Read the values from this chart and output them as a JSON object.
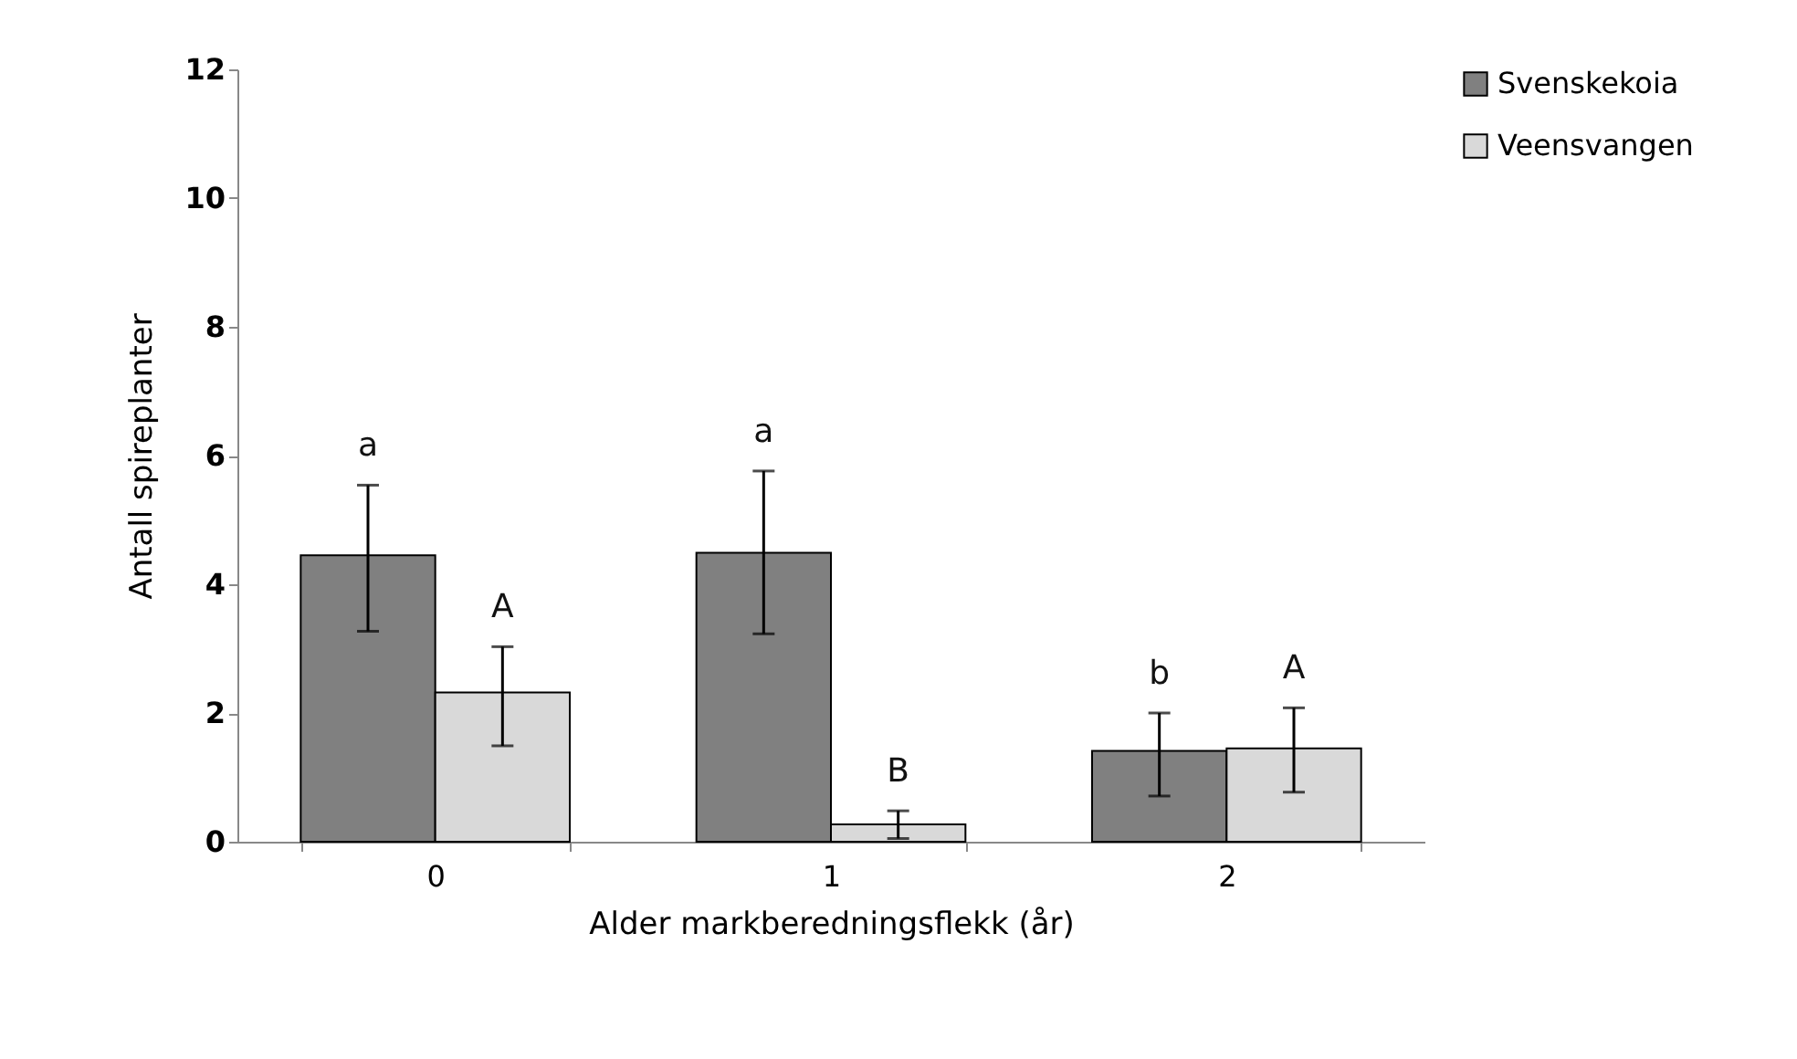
{
  "chart_data": {
    "type": "bar",
    "xlabel": "Alder markberedningsflekk (år)",
    "ylabel": "Antall spireplanter",
    "categories": [
      "0",
      "1",
      "2"
    ],
    "series": [
      {
        "name": "Svenskekoia",
        "color": "#808080",
        "values": [
          4.45,
          4.49,
          1.41
        ],
        "errors": [
          [
            3.27,
            5.54
          ],
          [
            3.23,
            5.76
          ],
          [
            0.71,
            2.0
          ]
        ]
      },
      {
        "name": "Veensvangen",
        "color": "#d9d9d9",
        "values": [
          2.32,
          0.27,
          1.45
        ],
        "errors": [
          [
            1.49,
            3.03
          ],
          [
            0.05,
            0.48
          ],
          [
            0.77,
            2.08
          ]
        ]
      }
    ],
    "annotations": [
      "a",
      "A",
      "a",
      "B",
      "b",
      "A"
    ],
    "ylim": [
      0,
      12
    ],
    "yticks": [
      0,
      2,
      4,
      6,
      8,
      10,
      12
    ],
    "grid": false,
    "legend": "top right"
  }
}
